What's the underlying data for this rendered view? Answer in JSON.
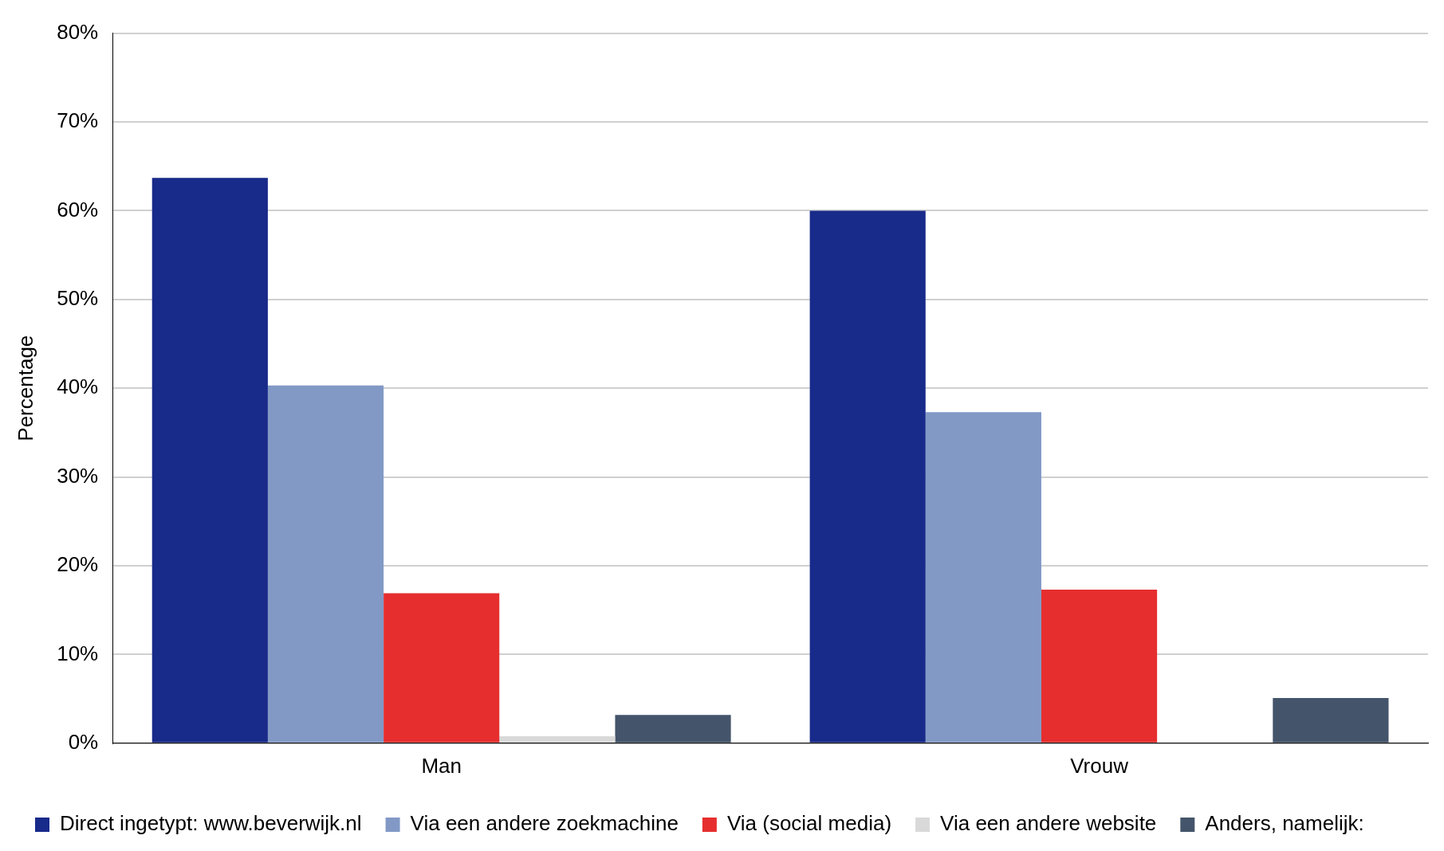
{
  "chart_data": {
    "type": "bar",
    "ylabel": "Percentage",
    "categories": [
      "Man",
      "Vrouw"
    ],
    "series": [
      {
        "name": "Direct ingetypt: www.beverwijk.nl",
        "color": "#182a8a",
        "values": [
          63.7,
          60.0
        ]
      },
      {
        "name": "Via een andere zoekmachine",
        "color": "#8299c6",
        "values": [
          40.3,
          37.3
        ]
      },
      {
        "name": "Via (social media)",
        "color": "#e62e2e",
        "values": [
          16.9,
          17.3
        ]
      },
      {
        "name": "Via een andere website",
        "color": "#d9d9d9",
        "values": [
          0.8,
          0
        ]
      },
      {
        "name": "Anders, namelijk:",
        "color": "#44546a",
        "values": [
          3.2,
          5.1
        ]
      }
    ],
    "ylim": [
      0,
      80
    ],
    "yticks": [
      {
        "value": 0,
        "label": "0%"
      },
      {
        "value": 10,
        "label": "10%"
      },
      {
        "value": 20,
        "label": "20%"
      },
      {
        "value": 30,
        "label": "30%"
      },
      {
        "value": 40,
        "label": "40%"
      },
      {
        "value": 50,
        "label": "50%"
      },
      {
        "value": 60,
        "label": "60%"
      },
      {
        "value": 70,
        "label": "70%"
      },
      {
        "value": 80,
        "label": "80%"
      }
    ],
    "grid": "y",
    "legend": "bottom"
  }
}
